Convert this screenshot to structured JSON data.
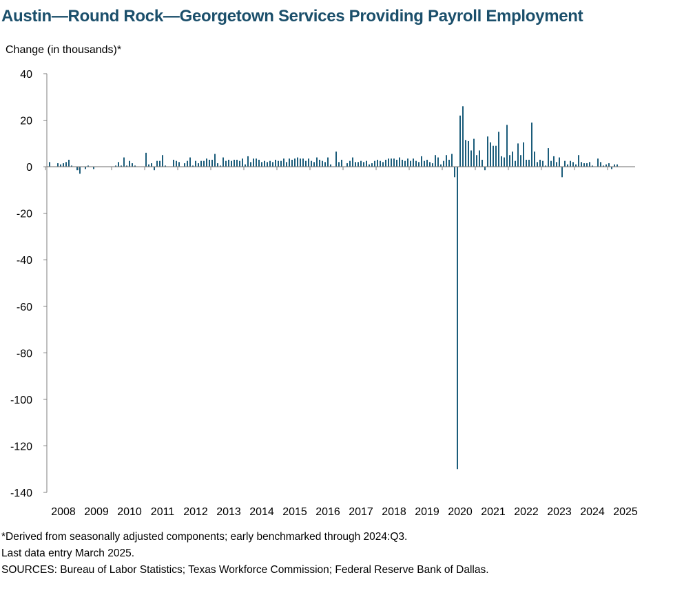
{
  "chart_data": {
    "type": "bar",
    "title": "Austin—Round Rock—Georgetown Services Providing Payroll Employment",
    "ylabel": "Change (in thousands)*",
    "xlabel": "",
    "ylim": [
      -140,
      40
    ],
    "yticks": [
      "40",
      "20",
      "0",
      "-20",
      "-40",
      "-60",
      "-80",
      "-100",
      "-120",
      "-140"
    ],
    "ytick_values": [
      40,
      20,
      0,
      -20,
      -40,
      -60,
      -80,
      -100,
      -120,
      -140
    ],
    "xtick_labels": [
      "2008",
      "2009",
      "2010",
      "2011",
      "2012",
      "2013",
      "2014",
      "2015",
      "2016",
      "2017",
      "2018",
      "2019",
      "2020",
      "2021",
      "2022",
      "2023",
      "2024",
      "2025"
    ],
    "x_start": "2008-01",
    "x_end": "2025-03",
    "frequency": "monthly",
    "bar_color": "#1b5c7a",
    "series": [
      {
        "values": [
          2,
          0,
          0,
          1.5,
          1,
          1.5,
          2,
          3,
          0.5,
          0,
          -1.5,
          -3,
          0,
          -1,
          0.5,
          0,
          -1,
          0,
          0,
          0,
          0,
          0,
          0,
          0,
          0.5,
          2,
          0.5,
          4,
          0.5,
          2.5,
          1.5,
          0.5,
          0,
          0,
          0,
          6,
          1,
          1.5,
          -1.5,
          2.5,
          2.5,
          5,
          0.5,
          0,
          0,
          3,
          2.5,
          2,
          0,
          1.5,
          2.5,
          4,
          0.5,
          2.5,
          1.5,
          2.5,
          2.5,
          3.5,
          3,
          3,
          5.5,
          1.5,
          0.5,
          4,
          2.5,
          3,
          2.5,
          3,
          3,
          2.5,
          3.5,
          1,
          4.5,
          2,
          3.5,
          3.5,
          3,
          2,
          2.5,
          2,
          2.5,
          2,
          3,
          2.5,
          2.5,
          3.5,
          2,
          3.5,
          3,
          3.5,
          4,
          3.5,
          3.5,
          2.5,
          3.5,
          2.5,
          2,
          4,
          3,
          2.5,
          2,
          4,
          1,
          0,
          6.5,
          2,
          3,
          0,
          1.5,
          2.5,
          4,
          2,
          2,
          2.5,
          2,
          2.5,
          1,
          1.5,
          2.5,
          3,
          2.5,
          2,
          3,
          3.5,
          3.5,
          3.5,
          3,
          4,
          3,
          2.5,
          3.5,
          2.5,
          3.5,
          2.5,
          2,
          4.5,
          2.5,
          3,
          2,
          1.5,
          5,
          4,
          1,
          2.5,
          5,
          3,
          5.5,
          -4.5,
          -130,
          22,
          26,
          11.5,
          11,
          7,
          12,
          5,
          7,
          3,
          -1.5,
          13,
          10.5,
          9,
          9,
          15,
          4.5,
          4,
          18,
          5,
          6.5,
          2.5,
          10,
          5,
          10.5,
          3,
          3,
          19,
          6.5,
          2,
          3,
          2.5,
          0.5,
          8,
          2.5,
          4.5,
          2,
          4,
          -4.5,
          2.5,
          1,
          2.5,
          2,
          1,
          5,
          2,
          1.5,
          1.5,
          2,
          0.5,
          0,
          3.5,
          2,
          0.5,
          1,
          1.5,
          -1,
          1,
          1
        ]
      }
    ]
  },
  "footnotes": {
    "derived": "*Derived from seasonally adjusted components; early benchmarked through 2024:Q3.",
    "last_entry": "Last data entry March 2025.",
    "sources": "SOURCES: Bureau of Labor Statistics; Texas Workforce Commission; Federal Reserve Bank of Dallas."
  }
}
